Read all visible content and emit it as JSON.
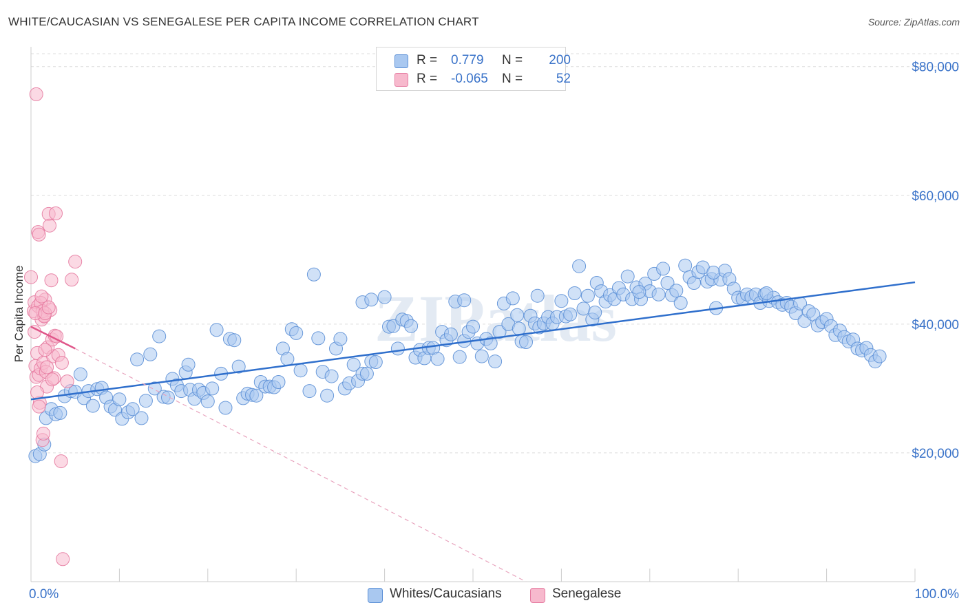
{
  "title": "WHITE/CAUCASIAN VS SENEGALESE PER CAPITA INCOME CORRELATION CHART",
  "source": "Source: ZipAtlas.com",
  "watermark": "ZIPatlas",
  "legend": {
    "rows": [
      {
        "r_label": "R =",
        "r_value": "0.779",
        "n_label": "N =",
        "n_value": "200",
        "color": "#a9c8f0",
        "border": "#5b8fd6"
      },
      {
        "r_label": "R =",
        "r_value": "-0.065",
        "n_label": "N =",
        "n_value": "52",
        "color": "#f7b9cd",
        "border": "#e57aa0"
      }
    ]
  },
  "bottom_legend": [
    {
      "label": "Whites/Caucasians",
      "color": "#a9c8f0",
      "border": "#5b8fd6"
    },
    {
      "label": "Senegalese",
      "color": "#f7b9cd",
      "border": "#e57aa0"
    }
  ],
  "chart_data": {
    "type": "scatter",
    "xlabel": "",
    "ylabel": "Per Capita Income",
    "xlim": [
      0,
      100
    ],
    "ylim": [
      0,
      82000
    ],
    "x_tick_labels": [
      {
        "value": 0,
        "label": "0.0%"
      },
      {
        "value": 100,
        "label": "100.0%"
      }
    ],
    "y_ticks": [
      {
        "value": 20000,
        "label": "$20,000"
      },
      {
        "value": 40000,
        "label": "$40,000"
      },
      {
        "value": 60000,
        "label": "$60,000"
      },
      {
        "value": 80000,
        "label": "$80,000"
      }
    ],
    "grid": true,
    "legend_position": "top-center",
    "series": [
      {
        "name": "Whites/Caucasians",
        "color": "#5b8fd6",
        "fill": "#a9c8f0",
        "trend": {
          "x": [
            0,
            100
          ],
          "y": [
            28300,
            46500
          ],
          "color": "#2f6fcc"
        },
        "points": [
          [
            0.5,
            19500
          ],
          [
            1,
            19800
          ],
          [
            1.5,
            21300
          ],
          [
            1.7,
            25400
          ],
          [
            2.3,
            26800
          ],
          [
            2.8,
            26000
          ],
          [
            3.3,
            26200
          ],
          [
            3.8,
            28800
          ],
          [
            4.5,
            29600
          ],
          [
            5,
            29500
          ],
          [
            5.6,
            32200
          ],
          [
            6,
            28500
          ],
          [
            6.5,
            29600
          ],
          [
            7,
            27300
          ],
          [
            7.5,
            29900
          ],
          [
            8,
            30100
          ],
          [
            8.5,
            28600
          ],
          [
            9,
            27200
          ],
          [
            9.5,
            26700
          ],
          [
            10,
            28300
          ],
          [
            10.3,
            25300
          ],
          [
            11,
            26300
          ],
          [
            11.5,
            26800
          ],
          [
            12,
            34500
          ],
          [
            12.5,
            25400
          ],
          [
            13,
            28100
          ],
          [
            13.5,
            35300
          ],
          [
            14,
            30000
          ],
          [
            14.5,
            38100
          ],
          [
            15,
            28700
          ],
          [
            15.5,
            28600
          ],
          [
            16,
            31500
          ],
          [
            16.5,
            30500
          ],
          [
            17,
            29600
          ],
          [
            17.5,
            32500
          ],
          [
            17.8,
            33700
          ],
          [
            18,
            29800
          ],
          [
            18.5,
            28400
          ],
          [
            19,
            29800
          ],
          [
            19.5,
            29300
          ],
          [
            20,
            28000
          ],
          [
            20.5,
            30000
          ],
          [
            21,
            39100
          ],
          [
            21.5,
            32300
          ],
          [
            22,
            27000
          ],
          [
            22.5,
            37700
          ],
          [
            23,
            37500
          ],
          [
            23.5,
            33400
          ],
          [
            24,
            28500
          ],
          [
            24.5,
            29200
          ],
          [
            25,
            29000
          ],
          [
            25.5,
            28900
          ],
          [
            26,
            31000
          ],
          [
            26.5,
            30300
          ],
          [
            27,
            30300
          ],
          [
            27.5,
            30200
          ],
          [
            28,
            31000
          ],
          [
            28.5,
            36200
          ],
          [
            29,
            34600
          ],
          [
            29.5,
            39200
          ],
          [
            30,
            38600
          ],
          [
            30.5,
            32800
          ],
          [
            31.5,
            29600
          ],
          [
            32,
            47700
          ],
          [
            32.5,
            37800
          ],
          [
            33,
            32600
          ],
          [
            33.5,
            28900
          ],
          [
            34,
            31900
          ],
          [
            34.5,
            36200
          ],
          [
            35,
            37700
          ],
          [
            35.5,
            30000
          ],
          [
            36,
            30800
          ],
          [
            36.5,
            33700
          ],
          [
            37,
            31200
          ],
          [
            37.5,
            32300
          ],
          [
            38,
            32300
          ],
          [
            38.5,
            34200
          ],
          [
            39,
            34100
          ],
          [
            37.5,
            43400
          ],
          [
            40,
            44200
          ],
          [
            40.5,
            39600
          ],
          [
            41,
            39700
          ],
          [
            41.5,
            36200
          ],
          [
            42,
            40700
          ],
          [
            42.5,
            40500
          ],
          [
            43,
            39700
          ],
          [
            43.5,
            34800
          ],
          [
            44,
            36000
          ],
          [
            44.5,
            34700
          ],
          [
            45,
            36300
          ],
          [
            45.5,
            36300
          ],
          [
            46,
            34600
          ],
          [
            46.5,
            38800
          ],
          [
            47,
            37500
          ],
          [
            47.5,
            38400
          ],
          [
            48,
            43500
          ],
          [
            48.5,
            34900
          ],
          [
            49,
            37400
          ],
          [
            49.5,
            38800
          ],
          [
            50,
            39600
          ],
          [
            50.5,
            37000
          ],
          [
            51,
            35000
          ],
          [
            51.5,
            37700
          ],
          [
            52,
            37000
          ],
          [
            52.5,
            34200
          ],
          [
            53,
            38800
          ],
          [
            53.5,
            43200
          ],
          [
            54,
            40000
          ],
          [
            54.5,
            44000
          ],
          [
            55,
            41400
          ],
          [
            55.5,
            37300
          ],
          [
            56,
            37200
          ],
          [
            56.5,
            41300
          ],
          [
            57,
            40100
          ],
          [
            57.5,
            39500
          ],
          [
            58,
            40100
          ],
          [
            58.5,
            41100
          ],
          [
            59,
            40100
          ],
          [
            59.5,
            41100
          ],
          [
            60,
            43600
          ],
          [
            60.5,
            41200
          ],
          [
            61,
            41500
          ],
          [
            61.5,
            44800
          ],
          [
            62,
            49000
          ],
          [
            62.5,
            42400
          ],
          [
            63,
            44400
          ],
          [
            63.5,
            40700
          ],
          [
            64,
            46400
          ],
          [
            64.5,
            45100
          ],
          [
            65,
            43500
          ],
          [
            65.5,
            44500
          ],
          [
            66,
            43900
          ],
          [
            66.5,
            45600
          ],
          [
            67,
            44600
          ],
          [
            67.5,
            47400
          ],
          [
            68,
            43900
          ],
          [
            68.5,
            45700
          ],
          [
            69,
            43900
          ],
          [
            69.5,
            46300
          ],
          [
            70,
            45100
          ],
          [
            70.5,
            47800
          ],
          [
            71,
            44600
          ],
          [
            71.5,
            48600
          ],
          [
            72,
            46400
          ],
          [
            72.5,
            44500
          ],
          [
            73,
            45200
          ],
          [
            73.5,
            43300
          ],
          [
            74,
            49100
          ],
          [
            74.5,
            47300
          ],
          [
            75,
            46400
          ],
          [
            75.5,
            48100
          ],
          [
            76,
            48800
          ],
          [
            76.5,
            46600
          ],
          [
            77,
            47000
          ],
          [
            77.5,
            42500
          ],
          [
            78,
            46900
          ],
          [
            78.5,
            48300
          ],
          [
            79,
            47000
          ],
          [
            79.5,
            45500
          ],
          [
            80,
            44100
          ],
          [
            80.5,
            43900
          ],
          [
            81,
            44600
          ],
          [
            81.5,
            44200
          ],
          [
            82,
            44600
          ],
          [
            82.5,
            43300
          ],
          [
            83,
            44600
          ],
          [
            83.5,
            43600
          ],
          [
            84,
            44100
          ],
          [
            84.5,
            43400
          ],
          [
            85,
            43000
          ],
          [
            85.5,
            43300
          ],
          [
            86,
            42700
          ],
          [
            86.5,
            41700
          ],
          [
            87,
            43200
          ],
          [
            87.5,
            40500
          ],
          [
            88,
            42000
          ],
          [
            88.5,
            41500
          ],
          [
            89,
            39800
          ],
          [
            89.5,
            40300
          ],
          [
            90,
            40800
          ],
          [
            90.5,
            39700
          ],
          [
            91,
            38300
          ],
          [
            91.5,
            39000
          ],
          [
            92,
            38000
          ],
          [
            92.5,
            37300
          ],
          [
            93,
            37600
          ],
          [
            93.5,
            36200
          ],
          [
            94,
            35900
          ],
          [
            94.5,
            36300
          ],
          [
            95,
            35200
          ],
          [
            95.5,
            34200
          ],
          [
            96,
            35000
          ],
          [
            38.5,
            43800
          ],
          [
            49,
            43700
          ],
          [
            55.2,
            39300
          ],
          [
            63.8,
            41800
          ],
          [
            77.2,
            48000
          ],
          [
            83.2,
            44800
          ],
          [
            68.8,
            45000
          ],
          [
            57.3,
            44400
          ]
        ]
      },
      {
        "name": "Senegalese",
        "color": "#e57aa0",
        "fill": "#f7b9cd",
        "trend": {
          "x": [
            0,
            5
          ],
          "y": [
            39600,
            36200
          ],
          "color": "#e0578a",
          "dashed_extension": {
            "x": [
              5,
              56
            ],
            "y": [
              36200,
              0
            ]
          }
        },
        "points": [
          [
            0,
            47300
          ],
          [
            0.3,
            42000
          ],
          [
            0.4,
            43400
          ],
          [
            0.5,
            33500
          ],
          [
            0.6,
            31800
          ],
          [
            0.7,
            35500
          ],
          [
            0.8,
            42800
          ],
          [
            0.9,
            32100
          ],
          [
            1,
            27800
          ],
          [
            1.1,
            33100
          ],
          [
            1.2,
            40700
          ],
          [
            1.3,
            22000
          ],
          [
            1.4,
            34000
          ],
          [
            1.5,
            41300
          ],
          [
            1.6,
            43800
          ],
          [
            1.7,
            32600
          ],
          [
            1.8,
            30300
          ],
          [
            1.9,
            36400
          ],
          [
            2,
            57100
          ],
          [
            2.1,
            55300
          ],
          [
            2.2,
            42200
          ],
          [
            2.3,
            46800
          ],
          [
            2.4,
            37600
          ],
          [
            2.5,
            35000
          ],
          [
            2.6,
            31600
          ],
          [
            2.7,
            38200
          ],
          [
            2.8,
            57200
          ],
          [
            0.6,
            75700
          ],
          [
            0.8,
            54300
          ],
          [
            0.9,
            53900
          ],
          [
            1.1,
            43300
          ],
          [
            1.3,
            42000
          ],
          [
            1.5,
            41200
          ],
          [
            1.6,
            36000
          ],
          [
            1.8,
            33300
          ],
          [
            2.4,
            31400
          ],
          [
            3.4,
            18700
          ],
          [
            2.9,
            38100
          ],
          [
            3.1,
            35200
          ],
          [
            3.6,
            3500
          ],
          [
            4.1,
            31100
          ],
          [
            4.6,
            46900
          ],
          [
            5,
            49700
          ],
          [
            0.4,
            38800
          ],
          [
            0.5,
            41700
          ],
          [
            0.7,
            29400
          ],
          [
            0.9,
            27200
          ],
          [
            1.2,
            44300
          ],
          [
            1.4,
            23000
          ],
          [
            1.6,
            41700
          ],
          [
            2.0,
            42600
          ],
          [
            3.5,
            34000
          ]
        ]
      }
    ]
  }
}
